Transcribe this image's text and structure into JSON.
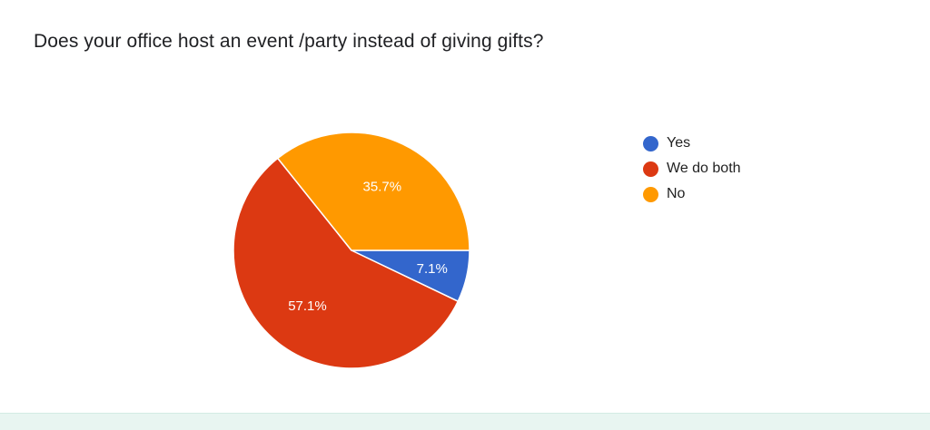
{
  "question": {
    "title": "Does your office host an event /party instead of giving gifts?"
  },
  "chart_data": {
    "type": "pie",
    "title": "Does your office host an event /party instead of giving gifts?",
    "series": [
      {
        "name": "Yes",
        "value": 7.1,
        "label": "7.1%",
        "color": "#3366cc"
      },
      {
        "name": "We do both",
        "value": 57.1,
        "label": "57.1%",
        "color": "#dc3912"
      },
      {
        "name": "No",
        "value": 35.7,
        "label": "35.7%",
        "color": "#ff9900"
      }
    ],
    "legend_position": "right"
  }
}
